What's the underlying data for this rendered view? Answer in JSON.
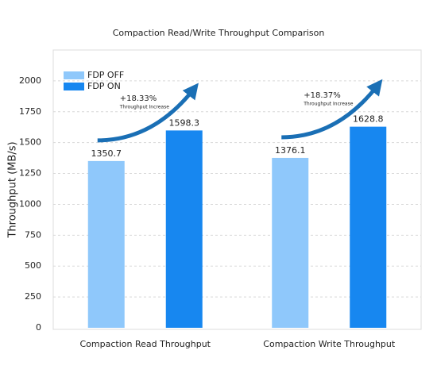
{
  "chart_data": {
    "type": "bar",
    "title": "Compaction Read/Write Throughput Comparison",
    "y_label": "Throughput (MB/s)",
    "categories": [
      "Compaction Read Throughput",
      "Compaction Write Throughput"
    ],
    "series": [
      {
        "name": "FDP OFF",
        "color": "#8fc8fb",
        "values": [
          1350.7,
          1376.1
        ]
      },
      {
        "name": "FDP ON",
        "color": "#1787f0",
        "values": [
          1598.3,
          1628.8
        ]
      }
    ],
    "annotations": [
      {
        "text": "+18.33%",
        "subtext": "Throughput Increase"
      },
      {
        "text": "+18.37%",
        "subtext": "Throughput Increase"
      }
    ],
    "ylim": [
      0,
      2250
    ],
    "yticks": [
      0,
      250,
      500,
      750,
      1000,
      1250,
      1500,
      1750,
      2000
    ],
    "grid": true,
    "legend": "upper left"
  }
}
